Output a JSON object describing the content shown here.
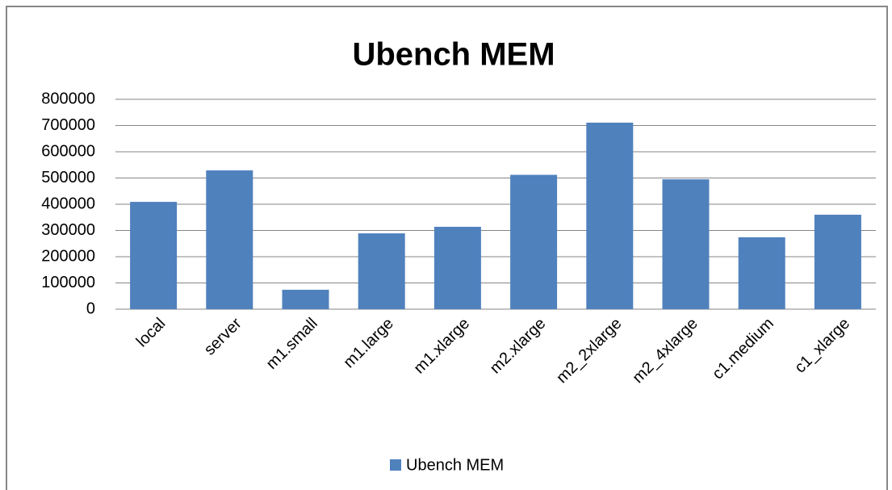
{
  "chart_data": {
    "type": "bar",
    "title": "Ubench MEM",
    "categories": [
      "local",
      "server",
      "m1.small",
      "m1.large",
      "m1.xlarge",
      "m2.xlarge",
      "m2_2xlarge",
      "m2_4xlarge",
      "c1.medium",
      "c1_xlarge"
    ],
    "series": [
      {
        "name": "Ubench MEM",
        "color": "#4f81bd",
        "values": [
          409000,
          529000,
          74000,
          289000,
          314000,
          512000,
          711000,
          495000,
          274000,
          360000
        ]
      }
    ],
    "ylim": [
      0,
      800000
    ],
    "yticks": [
      0,
      100000,
      200000,
      300000,
      400000,
      500000,
      600000,
      700000,
      800000
    ],
    "grid": true,
    "legend": "bottom"
  }
}
